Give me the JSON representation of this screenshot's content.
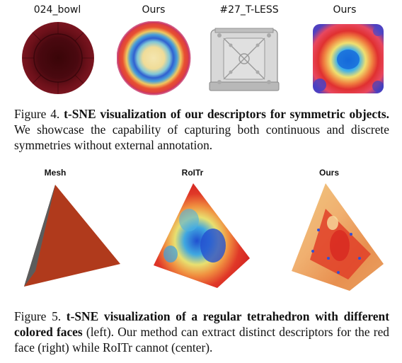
{
  "figure4": {
    "labels": [
      "024_bowl",
      "Ours",
      "#27_T-LESS",
      "Ours"
    ],
    "caption_prefix": "Figure 4.",
    "caption_bold": "t-SNE visualization of our descriptors for symmetric objects.",
    "caption_rest": "We showcase the capability of capturing both continuous and discrete symmetries without external annotation."
  },
  "figure5": {
    "labels": [
      "Mesh",
      "RoITr",
      "Ours"
    ],
    "caption_prefix": "Figure 5.",
    "caption_bold": "t-SNE visualization of a regular tetrahedron with different colored faces",
    "caption_rest": "(left). Our method can extract distinct descriptors for the red face (right) while RoITr cannot (center)."
  },
  "colors": {
    "bowl": "#5a0a12",
    "tless": "#c8c8c8",
    "mesh_red": "#b03a1c",
    "mesh_gray": "#6e6e6e"
  }
}
